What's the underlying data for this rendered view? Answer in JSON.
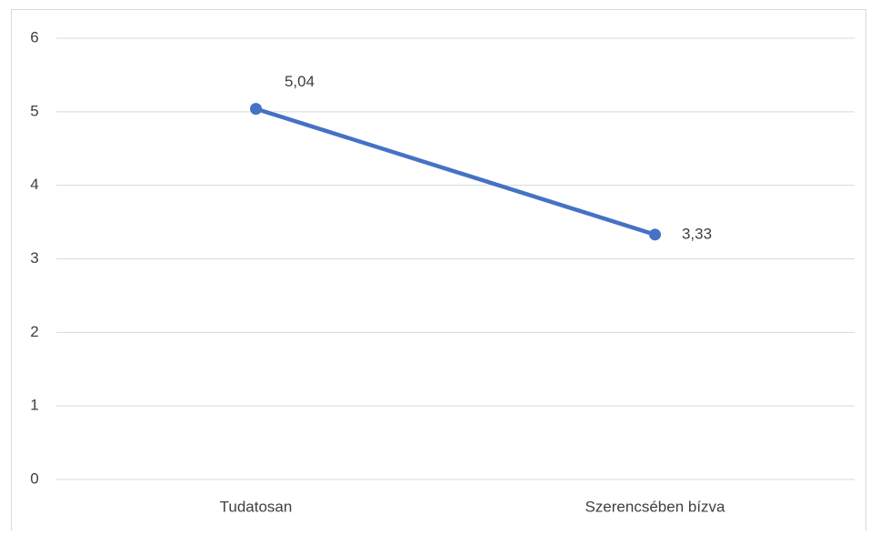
{
  "chart_data": {
    "type": "line",
    "categories": [
      "Tudatosan",
      "Szerencsében bízva"
    ],
    "series": [
      {
        "color": "#4472c4",
        "values": [
          5.04,
          3.33
        ],
        "value_labels": [
          "5,04",
          "3,33"
        ]
      }
    ],
    "ylim": [
      0,
      6
    ],
    "yticks": [
      0,
      1,
      2,
      3,
      4,
      5,
      6
    ],
    "grid": true
  }
}
